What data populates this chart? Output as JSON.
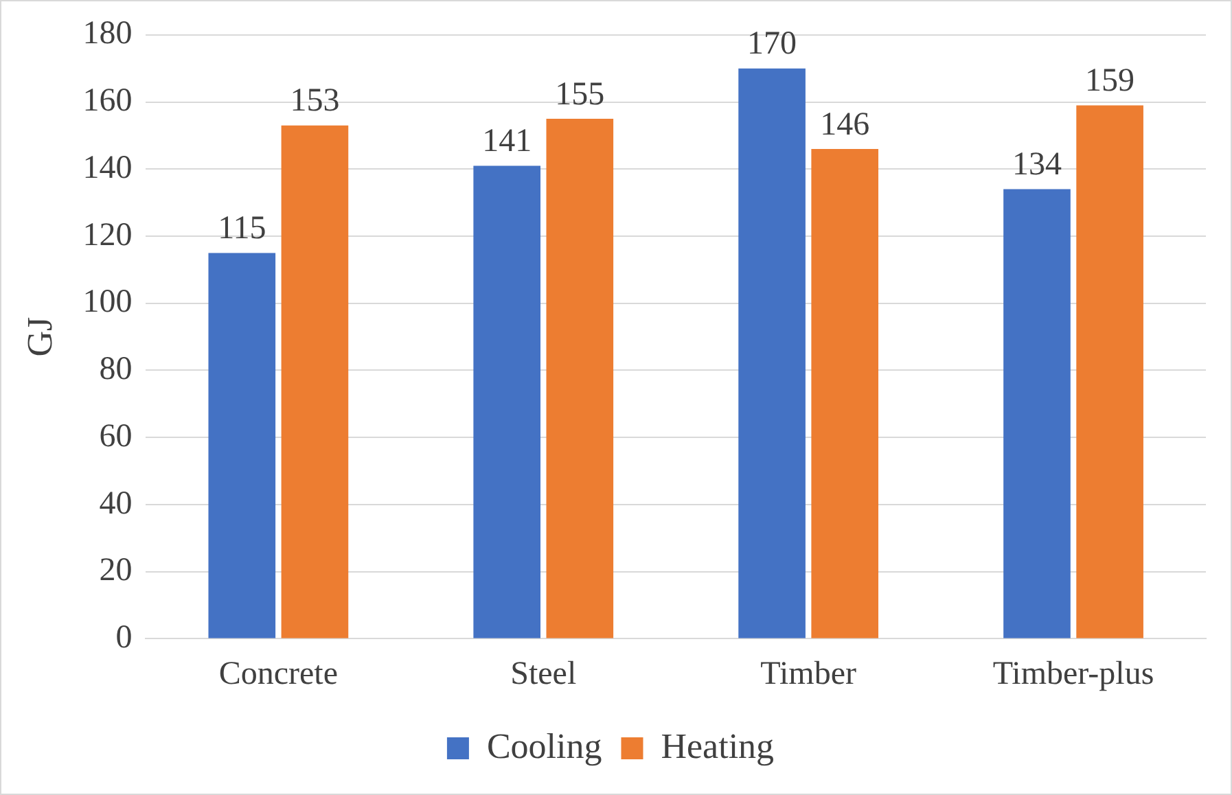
{
  "chart_data": {
    "type": "bar",
    "ylabel": "GJ",
    "categories": [
      "Concrete",
      "Steel",
      "Timber",
      "Timber-plus"
    ],
    "series": [
      {
        "name": "Cooling",
        "color": "#4472c4",
        "values": [
          115,
          141,
          170,
          134
        ]
      },
      {
        "name": "Heating",
        "color": "#ed7d31",
        "values": [
          153,
          155,
          146,
          159
        ]
      }
    ],
    "ylim": [
      0,
      180
    ],
    "yticks": [
      0,
      20,
      40,
      60,
      80,
      100,
      120,
      140,
      160,
      180
    ],
    "grid": "y",
    "legend": "bottom",
    "data_labels": true
  }
}
